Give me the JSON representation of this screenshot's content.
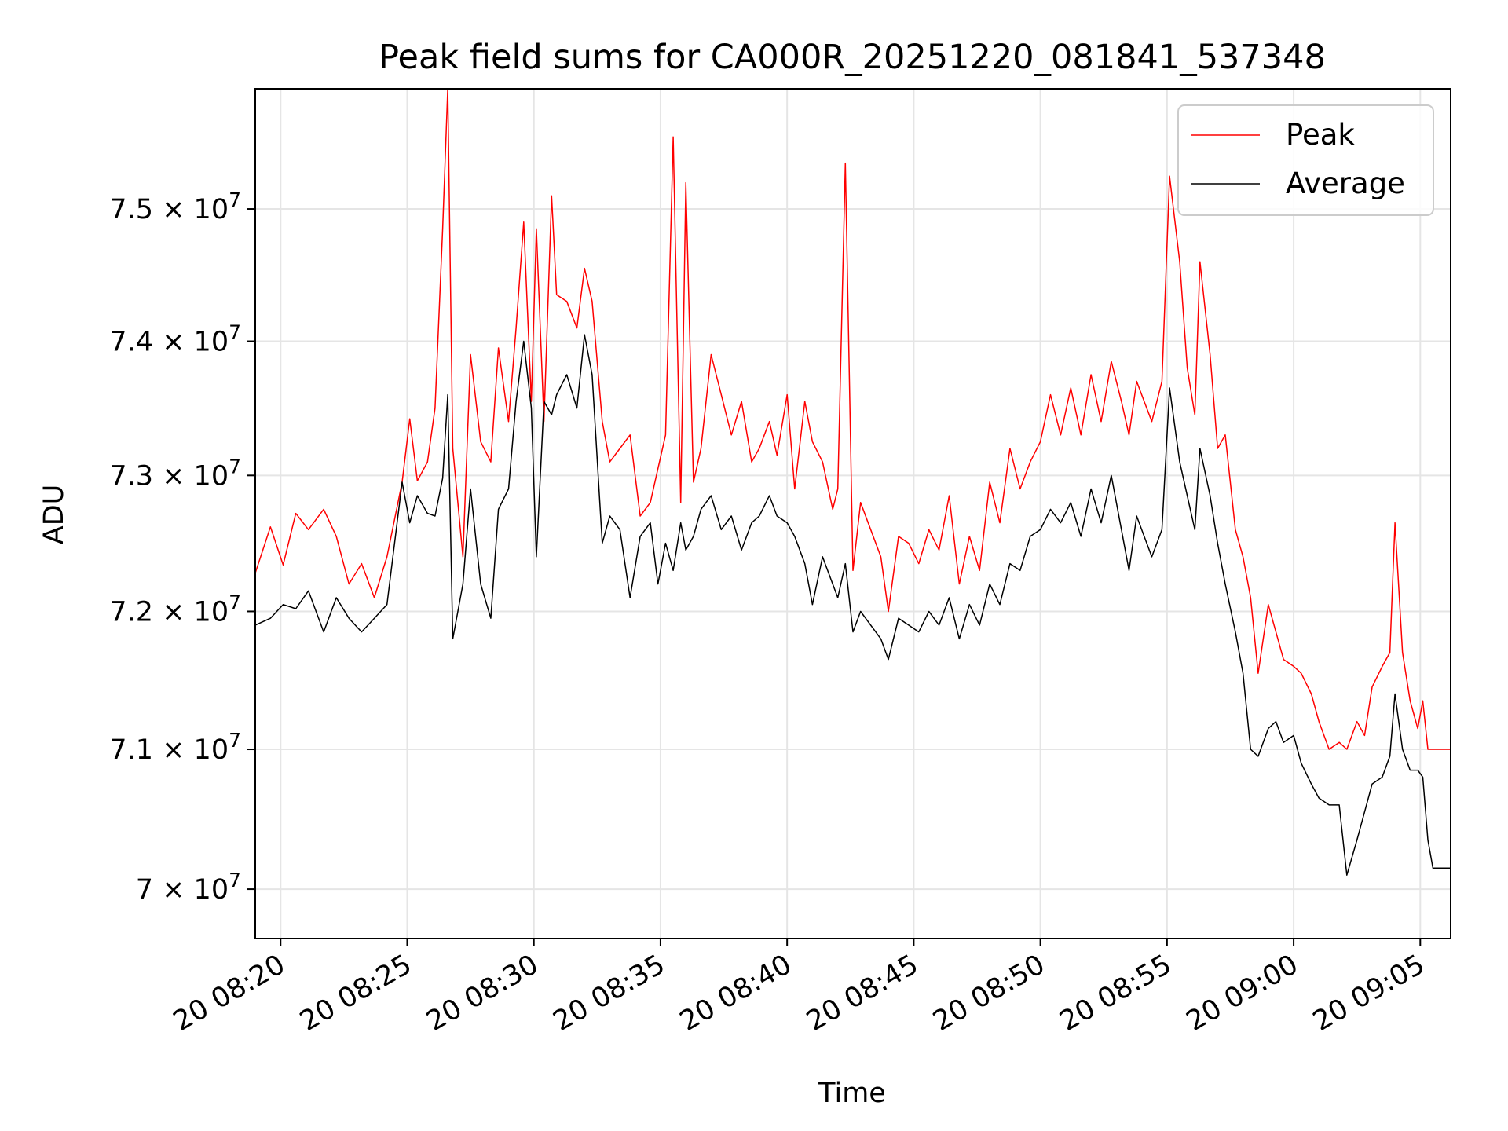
{
  "chart_data": {
    "type": "line",
    "title": "Peak field sums for CA000R_20251220_081841_537348",
    "xlabel": "Time",
    "ylabel": "ADU",
    "yscale": "log",
    "ylim": [
      69650000,
      75920000
    ],
    "xlim_minutes": [
      19.0,
      66.2
    ],
    "grid": true,
    "legend_position": "upper right",
    "x_ticks": [
      {
        "label": "20 08:20",
        "minutes": 20
      },
      {
        "label": "20 08:25",
        "minutes": 25
      },
      {
        "label": "20 08:30",
        "minutes": 30
      },
      {
        "label": "20 08:35",
        "minutes": 35
      },
      {
        "label": "20 08:40",
        "minutes": 40
      },
      {
        "label": "20 08:45",
        "minutes": 45
      },
      {
        "label": "20 08:50",
        "minutes": 50
      },
      {
        "label": "20 08:55",
        "minutes": 55
      },
      {
        "label": "20 09:00",
        "minutes": 60
      },
      {
        "label": "20 09:05",
        "minutes": 65
      }
    ],
    "y_ticks": [
      {
        "mantissa": "7",
        "value": 70000000
      },
      {
        "mantissa": "7.1",
        "value": 71000000
      },
      {
        "mantissa": "7.2",
        "value": 72000000
      },
      {
        "mantissa": "7.3",
        "value": 73000000
      },
      {
        "mantissa": "7.4",
        "value": 74000000
      },
      {
        "mantissa": "7.5",
        "value": 75000000
      }
    ],
    "y_tick_base": "× 10",
    "y_tick_exponent": "7",
    "series": [
      {
        "name": "Peak",
        "color": "#ff0000",
        "points": [
          [
            19.0,
            72.28
          ],
          [
            19.6,
            72.62
          ],
          [
            20.1,
            72.34
          ],
          [
            20.6,
            72.72
          ],
          [
            21.1,
            72.6
          ],
          [
            21.7,
            72.75
          ],
          [
            22.2,
            72.55
          ],
          [
            22.7,
            72.2
          ],
          [
            23.2,
            72.35
          ],
          [
            23.7,
            72.1
          ],
          [
            24.2,
            72.4
          ],
          [
            24.8,
            72.95
          ],
          [
            25.1,
            73.42
          ],
          [
            25.4,
            72.96
          ],
          [
            25.8,
            73.1
          ],
          [
            26.1,
            73.5
          ],
          [
            26.4,
            74.85
          ],
          [
            26.6,
            75.92
          ],
          [
            26.8,
            73.2
          ],
          [
            27.2,
            72.4
          ],
          [
            27.5,
            73.9
          ],
          [
            27.9,
            73.25
          ],
          [
            28.3,
            73.1
          ],
          [
            28.6,
            73.95
          ],
          [
            29.0,
            73.4
          ],
          [
            29.3,
            74.1
          ],
          [
            29.6,
            74.9
          ],
          [
            29.9,
            73.55
          ],
          [
            30.1,
            74.85
          ],
          [
            30.4,
            73.4
          ],
          [
            30.7,
            75.1
          ],
          [
            30.9,
            74.35
          ],
          [
            31.3,
            74.3
          ],
          [
            31.7,
            74.1
          ],
          [
            32.0,
            74.55
          ],
          [
            32.3,
            74.3
          ],
          [
            32.7,
            73.4
          ],
          [
            33.0,
            73.1
          ],
          [
            33.4,
            73.2
          ],
          [
            33.8,
            73.3
          ],
          [
            34.2,
            72.7
          ],
          [
            34.6,
            72.8
          ],
          [
            34.9,
            73.05
          ],
          [
            35.2,
            73.3
          ],
          [
            35.5,
            75.55
          ],
          [
            35.8,
            72.8
          ],
          [
            36.0,
            75.2
          ],
          [
            36.3,
            72.95
          ],
          [
            36.6,
            73.2
          ],
          [
            37.0,
            73.9
          ],
          [
            37.4,
            73.6
          ],
          [
            37.8,
            73.3
          ],
          [
            38.2,
            73.55
          ],
          [
            38.6,
            73.1
          ],
          [
            38.9,
            73.2
          ],
          [
            39.3,
            73.4
          ],
          [
            39.6,
            73.15
          ],
          [
            40.0,
            73.6
          ],
          [
            40.3,
            72.9
          ],
          [
            40.7,
            73.55
          ],
          [
            41.0,
            73.25
          ],
          [
            41.4,
            73.1
          ],
          [
            41.8,
            72.75
          ],
          [
            42.0,
            72.9
          ],
          [
            42.3,
            75.35
          ],
          [
            42.6,
            72.3
          ],
          [
            42.9,
            72.8
          ],
          [
            43.3,
            72.6
          ],
          [
            43.7,
            72.4
          ],
          [
            44.0,
            72.0
          ],
          [
            44.4,
            72.55
          ],
          [
            44.8,
            72.5
          ],
          [
            45.2,
            72.35
          ],
          [
            45.6,
            72.6
          ],
          [
            46.0,
            72.45
          ],
          [
            46.4,
            72.85
          ],
          [
            46.8,
            72.2
          ],
          [
            47.2,
            72.55
          ],
          [
            47.6,
            72.3
          ],
          [
            48.0,
            72.95
          ],
          [
            48.4,
            72.65
          ],
          [
            48.8,
            73.2
          ],
          [
            49.2,
            72.9
          ],
          [
            49.6,
            73.1
          ],
          [
            50.0,
            73.25
          ],
          [
            50.4,
            73.6
          ],
          [
            50.8,
            73.3
          ],
          [
            51.2,
            73.65
          ],
          [
            51.6,
            73.3
          ],
          [
            52.0,
            73.75
          ],
          [
            52.4,
            73.4
          ],
          [
            52.8,
            73.85
          ],
          [
            53.2,
            73.55
          ],
          [
            53.5,
            73.3
          ],
          [
            53.8,
            73.7
          ],
          [
            54.1,
            73.55
          ],
          [
            54.4,
            73.4
          ],
          [
            54.8,
            73.7
          ],
          [
            55.1,
            75.25
          ],
          [
            55.5,
            74.6
          ],
          [
            55.8,
            73.8
          ],
          [
            56.1,
            73.45
          ],
          [
            56.3,
            74.6
          ],
          [
            56.7,
            73.9
          ],
          [
            57.0,
            73.2
          ],
          [
            57.3,
            73.3
          ],
          [
            57.7,
            72.6
          ],
          [
            58.0,
            72.4
          ],
          [
            58.3,
            72.1
          ],
          [
            58.6,
            71.55
          ],
          [
            59.0,
            72.05
          ],
          [
            59.3,
            71.85
          ],
          [
            59.6,
            71.65
          ],
          [
            60.0,
            71.6
          ],
          [
            60.3,
            71.55
          ],
          [
            60.7,
            71.4
          ],
          [
            61.0,
            71.2
          ],
          [
            61.4,
            71.0
          ],
          [
            61.8,
            71.05
          ],
          [
            62.1,
            71.0
          ],
          [
            62.5,
            71.2
          ],
          [
            62.8,
            71.1
          ],
          [
            63.1,
            71.45
          ],
          [
            63.5,
            71.6
          ],
          [
            63.8,
            71.7
          ],
          [
            64.0,
            72.65
          ],
          [
            64.3,
            71.7
          ],
          [
            64.6,
            71.35
          ],
          [
            64.9,
            71.15
          ],
          [
            65.1,
            71.35
          ],
          [
            65.3,
            71.0
          ],
          [
            65.7,
            71.0
          ],
          [
            66.2,
            71.0
          ]
        ]
      },
      {
        "name": "Average",
        "color": "#000000",
        "points": [
          [
            19.0,
            71.9
          ],
          [
            19.6,
            71.95
          ],
          [
            20.1,
            72.05
          ],
          [
            20.6,
            72.02
          ],
          [
            21.1,
            72.15
          ],
          [
            21.7,
            71.85
          ],
          [
            22.2,
            72.1
          ],
          [
            22.7,
            71.95
          ],
          [
            23.2,
            71.85
          ],
          [
            23.7,
            71.95
          ],
          [
            24.2,
            72.05
          ],
          [
            24.8,
            72.95
          ],
          [
            25.1,
            72.65
          ],
          [
            25.4,
            72.85
          ],
          [
            25.8,
            72.72
          ],
          [
            26.1,
            72.7
          ],
          [
            26.4,
            72.98
          ],
          [
            26.6,
            73.6
          ],
          [
            26.8,
            71.8
          ],
          [
            27.2,
            72.2
          ],
          [
            27.5,
            72.9
          ],
          [
            27.9,
            72.2
          ],
          [
            28.3,
            71.95
          ],
          [
            28.6,
            72.75
          ],
          [
            29.0,
            72.9
          ],
          [
            29.3,
            73.55
          ],
          [
            29.6,
            74.0
          ],
          [
            29.9,
            73.5
          ],
          [
            30.1,
            72.4
          ],
          [
            30.4,
            73.55
          ],
          [
            30.7,
            73.45
          ],
          [
            30.9,
            73.6
          ],
          [
            31.3,
            73.75
          ],
          [
            31.7,
            73.5
          ],
          [
            32.0,
            74.05
          ],
          [
            32.3,
            73.75
          ],
          [
            32.7,
            72.5
          ],
          [
            33.0,
            72.7
          ],
          [
            33.4,
            72.6
          ],
          [
            33.8,
            72.1
          ],
          [
            34.2,
            72.55
          ],
          [
            34.6,
            72.65
          ],
          [
            34.9,
            72.2
          ],
          [
            35.2,
            72.5
          ],
          [
            35.5,
            72.3
          ],
          [
            35.8,
            72.65
          ],
          [
            36.0,
            72.45
          ],
          [
            36.3,
            72.55
          ],
          [
            36.6,
            72.75
          ],
          [
            37.0,
            72.85
          ],
          [
            37.4,
            72.6
          ],
          [
            37.8,
            72.7
          ],
          [
            38.2,
            72.45
          ],
          [
            38.6,
            72.65
          ],
          [
            38.9,
            72.7
          ],
          [
            39.3,
            72.85
          ],
          [
            39.6,
            72.7
          ],
          [
            40.0,
            72.65
          ],
          [
            40.3,
            72.55
          ],
          [
            40.7,
            72.35
          ],
          [
            41.0,
            72.05
          ],
          [
            41.4,
            72.4
          ],
          [
            41.8,
            72.2
          ],
          [
            42.0,
            72.1
          ],
          [
            42.3,
            72.35
          ],
          [
            42.6,
            71.85
          ],
          [
            42.9,
            72.0
          ],
          [
            43.3,
            71.9
          ],
          [
            43.7,
            71.8
          ],
          [
            44.0,
            71.65
          ],
          [
            44.4,
            71.95
          ],
          [
            44.8,
            71.9
          ],
          [
            45.2,
            71.85
          ],
          [
            45.6,
            72.0
          ],
          [
            46.0,
            71.9
          ],
          [
            46.4,
            72.1
          ],
          [
            46.8,
            71.8
          ],
          [
            47.2,
            72.05
          ],
          [
            47.6,
            71.9
          ],
          [
            48.0,
            72.2
          ],
          [
            48.4,
            72.05
          ],
          [
            48.8,
            72.35
          ],
          [
            49.2,
            72.3
          ],
          [
            49.6,
            72.55
          ],
          [
            50.0,
            72.6
          ],
          [
            50.4,
            72.75
          ],
          [
            50.8,
            72.65
          ],
          [
            51.2,
            72.8
          ],
          [
            51.6,
            72.55
          ],
          [
            52.0,
            72.9
          ],
          [
            52.4,
            72.65
          ],
          [
            52.8,
            73.0
          ],
          [
            53.2,
            72.6
          ],
          [
            53.5,
            72.3
          ],
          [
            53.8,
            72.7
          ],
          [
            54.1,
            72.55
          ],
          [
            54.4,
            72.4
          ],
          [
            54.8,
            72.6
          ],
          [
            55.1,
            73.65
          ],
          [
            55.5,
            73.1
          ],
          [
            55.8,
            72.85
          ],
          [
            56.1,
            72.6
          ],
          [
            56.3,
            73.2
          ],
          [
            56.7,
            72.85
          ],
          [
            57.0,
            72.5
          ],
          [
            57.3,
            72.2
          ],
          [
            57.7,
            71.85
          ],
          [
            58.0,
            71.55
          ],
          [
            58.3,
            71.0
          ],
          [
            58.6,
            70.95
          ],
          [
            59.0,
            71.15
          ],
          [
            59.3,
            71.2
          ],
          [
            59.6,
            71.05
          ],
          [
            60.0,
            71.1
          ],
          [
            60.3,
            70.9
          ],
          [
            60.7,
            70.75
          ],
          [
            61.0,
            70.65
          ],
          [
            61.4,
            70.6
          ],
          [
            61.8,
            70.6
          ],
          [
            62.1,
            70.1
          ],
          [
            62.5,
            70.35
          ],
          [
            62.8,
            70.55
          ],
          [
            63.1,
            70.75
          ],
          [
            63.5,
            70.8
          ],
          [
            63.8,
            70.95
          ],
          [
            64.0,
            71.4
          ],
          [
            64.3,
            71.0
          ],
          [
            64.6,
            70.85
          ],
          [
            64.9,
            70.85
          ],
          [
            65.1,
            70.8
          ],
          [
            65.3,
            70.35
          ],
          [
            65.5,
            70.15
          ],
          [
            66.2,
            70.15
          ]
        ]
      }
    ]
  }
}
